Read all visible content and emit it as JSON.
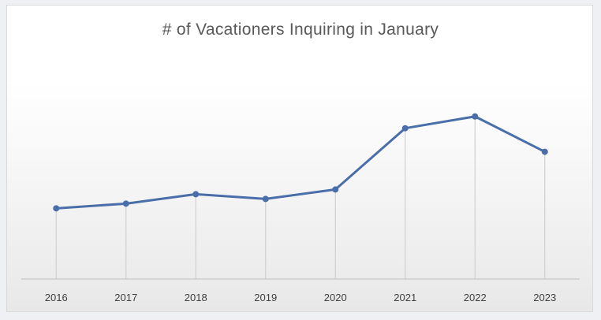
{
  "chart_data": {
    "type": "line",
    "title": "# of Vacationers  Inquiring  in January",
    "xlabel": "",
    "ylabel": "",
    "categories": [
      "2016",
      "2017",
      "2018",
      "2019",
      "2020",
      "2021",
      "2022",
      "2023"
    ],
    "series": [
      {
        "values": [
          30,
          32,
          36,
          34,
          38,
          64,
          69,
          54
        ]
      }
    ],
    "ylim": [
      0,
      92
    ],
    "grid": false,
    "drop_lines": true,
    "legend": "none",
    "line_color": "#4a6eaa",
    "drop_line_color": "#d0d0d0",
    "axis_color": "#bfbfbf"
  }
}
